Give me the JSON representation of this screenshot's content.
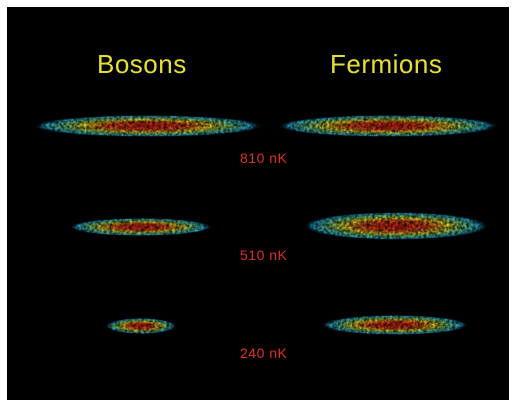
{
  "headings": {
    "left": "Bosons",
    "right": "Fermions"
  },
  "temperatures": [
    "810 nK",
    "510 nK",
    "240 nK"
  ],
  "colors": {
    "background": "#000000",
    "heading": "#e8e030",
    "temperature": "#e03020",
    "cloud_core": "#d81818",
    "cloud_mid": "#e8d020",
    "cloud_outer": "#20a8d0"
  }
}
